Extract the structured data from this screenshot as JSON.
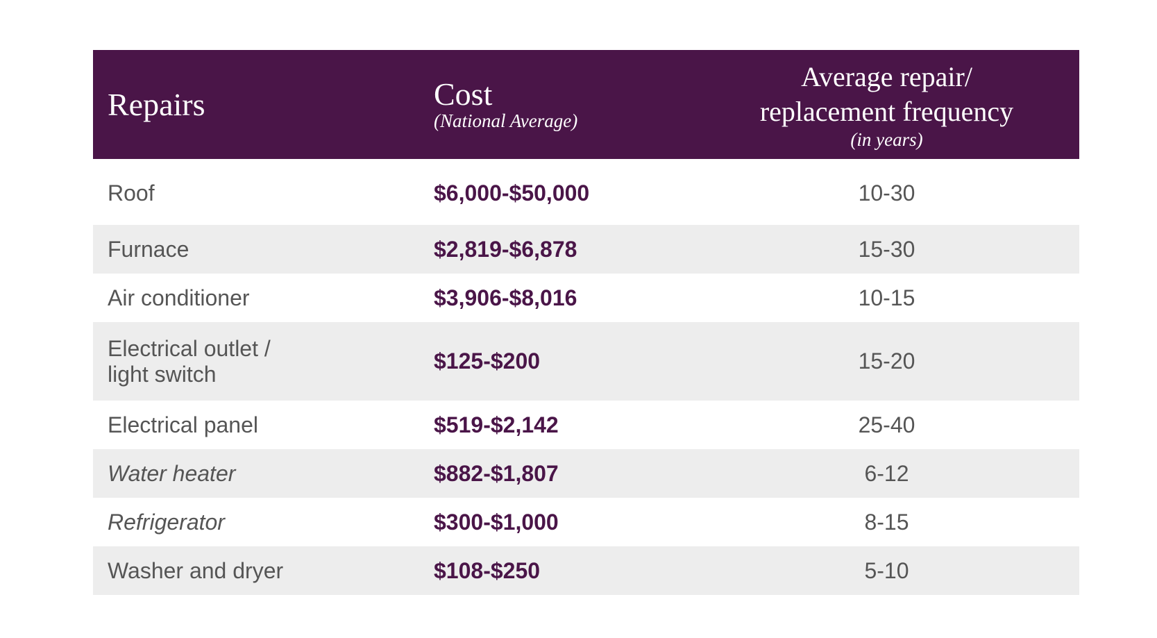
{
  "header": {
    "repairs": "Repairs",
    "cost": "Cost",
    "cost_note": "(National Average)",
    "frequency": "Average repair/ replacement frequency",
    "frequency_note": "(in years)"
  },
  "table": {
    "rows": [
      [
        "Roof",
        "$6,000-$50,000",
        "10-30"
      ],
      [
        "Furnace",
        "$2,819-$6,878",
        "15-30"
      ],
      [
        "Air conditioner",
        "$3,906-$8,016",
        "10-15"
      ],
      [
        "Electrical outlet / light switch",
        "$125-$200",
        "15-20"
      ],
      [
        "Electrical panel",
        "$519-$2,142",
        "25-40"
      ],
      [
        "Water heater",
        "$882-$1,807",
        "6-12"
      ],
      [
        "Refrigerator",
        "$300-$1,000",
        "8-15"
      ],
      [
        "Washer and dryer",
        "$108-$250",
        "5-10"
      ]
    ]
  }
}
